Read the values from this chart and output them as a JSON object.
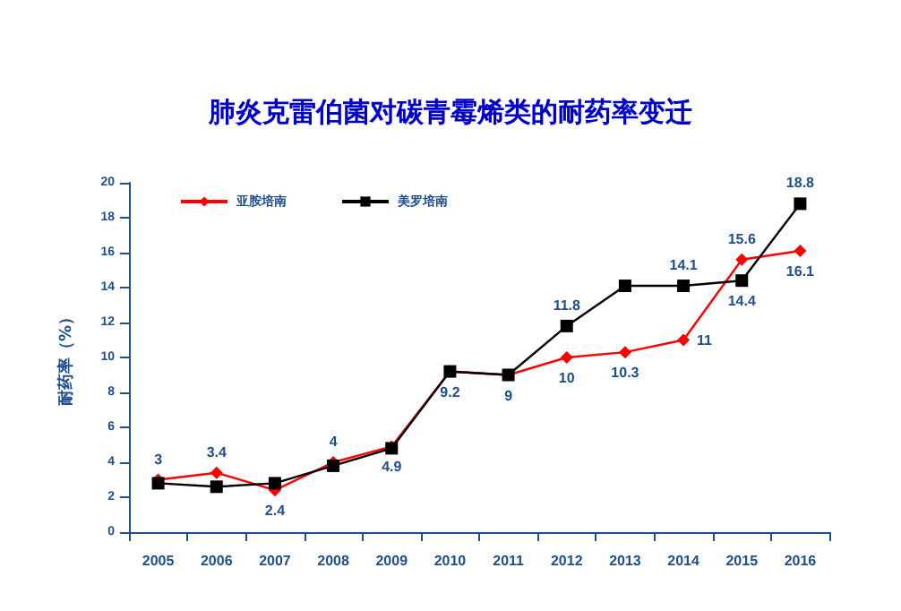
{
  "chart_data": {
    "type": "line",
    "title": "肺炎克雷伯菌对碳青霉烯类的耐药率变迁",
    "ylabel": "耐药率（%）",
    "categories": [
      "2005",
      "2006",
      "2007",
      "2008",
      "2009",
      "2010",
      "2011",
      "2012",
      "2013",
      "2014",
      "2015",
      "2016"
    ],
    "series": [
      {
        "name": "亚胺培南",
        "color": "#ff0000",
        "marker": "diamond",
        "values": [
          3,
          3.4,
          2.4,
          4,
          4.9,
          9.2,
          9,
          10,
          10.3,
          11,
          15.6,
          16.1
        ],
        "value_labels": [
          "3",
          "3.4",
          "2.4",
          "4",
          "4.9",
          "9.2",
          "9",
          "10",
          "10.3",
          "11",
          "15.6",
          "16.1"
        ]
      },
      {
        "name": "美罗培南",
        "color": "#000000",
        "marker": "square",
        "values": [
          2.8,
          2.6,
          2.8,
          3.8,
          4.8,
          9.2,
          9,
          11.8,
          14.1,
          14.1,
          14.4,
          18.8
        ],
        "value_labels": [
          null,
          null,
          null,
          null,
          null,
          null,
          null,
          "11.8",
          null,
          "14.1",
          "14.4",
          "18.8"
        ]
      }
    ],
    "ylim": [
      0,
      20
    ],
    "yticks": [
      0,
      2,
      4,
      6,
      8,
      10,
      12,
      14,
      16,
      18,
      20
    ],
    "grid": false,
    "legend": "top left"
  }
}
